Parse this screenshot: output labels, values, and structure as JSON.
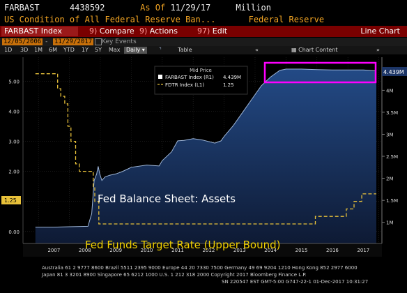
{
  "header": {
    "ticker": "FARBAST",
    "value": "4438592",
    "as_of_label": "As Of",
    "as_of_date": "11/29/17",
    "unit": "Million",
    "description": "US Condition of All Federal Reserve Ban...",
    "source": "Federal Reserve"
  },
  "menu": {
    "security": "FARBAST Index",
    "compare_num": "9)",
    "compare": "Compare",
    "actions_num": "9)",
    "actions": "Actions",
    "edit_num": "97)",
    "edit": "Edit",
    "chart_type": "Line Chart"
  },
  "toolbar": {
    "start_date": "12/05/2006",
    "end_date": "11/29/2017",
    "key_events": "Key Events",
    "periods": [
      "1D",
      "3D",
      "1M",
      "6M",
      "YTD",
      "1Y",
      "5Y",
      "Max"
    ],
    "frequency": "Daily",
    "table": "Table",
    "collapse": "«",
    "chart_content": "Chart Content",
    "expand": "»"
  },
  "chart_data": {
    "type": "line",
    "x_labels": [
      "2007",
      "2008",
      "2009",
      "2010",
      "2011",
      "2012",
      "2013",
      "2014",
      "2015",
      "2016",
      "2017"
    ],
    "left_axis": {
      "ticks": [
        "0.00",
        "1.00",
        "2.00",
        "3.00",
        "4.00",
        "5.00"
      ],
      "min": -0.4,
      "max": 5.8
    },
    "right_axis": {
      "ticks": [
        "1M",
        "1.5M",
        "2M",
        "2.5M",
        "3M",
        "3.5M",
        "4M"
      ],
      "min": 0.52,
      "max": 4.75
    },
    "legend_title": "Mid Price",
    "series": [
      {
        "name": "FARBAST Index",
        "axis": "R1",
        "last": "4.439M",
        "last_label": "4.439M",
        "points": [
          [
            2006.9,
            0.89
          ],
          [
            2007.5,
            0.89
          ],
          [
            2008.0,
            0.9
          ],
          [
            2008.6,
            0.91
          ],
          [
            2008.72,
            1.2
          ],
          [
            2008.8,
            1.95
          ],
          [
            2008.88,
            2.1
          ],
          [
            2008.93,
            2.27
          ],
          [
            2008.98,
            2.1
          ],
          [
            2009.05,
            1.95
          ],
          [
            2009.15,
            2.03
          ],
          [
            2009.3,
            2.07
          ],
          [
            2009.5,
            2.1
          ],
          [
            2009.7,
            2.15
          ],
          [
            2009.85,
            2.2
          ],
          [
            2010.0,
            2.25
          ],
          [
            2010.5,
            2.3
          ],
          [
            2010.9,
            2.28
          ],
          [
            2011.0,
            2.4
          ],
          [
            2011.3,
            2.6
          ],
          [
            2011.5,
            2.85
          ],
          [
            2011.7,
            2.86
          ],
          [
            2012.0,
            2.9
          ],
          [
            2012.3,
            2.87
          ],
          [
            2012.7,
            2.8
          ],
          [
            2012.9,
            2.85
          ],
          [
            2013.0,
            2.95
          ],
          [
            2013.3,
            3.2
          ],
          [
            2013.6,
            3.5
          ],
          [
            2013.9,
            3.8
          ],
          [
            2014.2,
            4.1
          ],
          [
            2014.5,
            4.3
          ],
          [
            2014.8,
            4.45
          ],
          [
            2015.0,
            4.48
          ],
          [
            2015.5,
            4.48
          ],
          [
            2016.0,
            4.47
          ],
          [
            2016.5,
            4.46
          ],
          [
            2017.0,
            4.46
          ],
          [
            2017.5,
            4.46
          ],
          [
            2017.92,
            4.44
          ]
        ]
      },
      {
        "name": "FDTR Index",
        "axis": "L1",
        "last": "1.25",
        "last_label": "1.25",
        "points": [
          [
            2006.9,
            5.25
          ],
          [
            2007.62,
            5.25
          ],
          [
            2007.62,
            4.75
          ],
          [
            2007.72,
            4.75
          ],
          [
            2007.72,
            4.5
          ],
          [
            2007.85,
            4.5
          ],
          [
            2007.85,
            4.25
          ],
          [
            2007.95,
            4.25
          ],
          [
            2007.95,
            3.5
          ],
          [
            2008.05,
            3.5
          ],
          [
            2008.05,
            3.0
          ],
          [
            2008.2,
            3.0
          ],
          [
            2008.2,
            2.25
          ],
          [
            2008.32,
            2.25
          ],
          [
            2008.32,
            2.0
          ],
          [
            2008.77,
            2.0
          ],
          [
            2008.77,
            1.5
          ],
          [
            2008.82,
            1.5
          ],
          [
            2008.82,
            1.0
          ],
          [
            2008.95,
            1.0
          ],
          [
            2008.95,
            0.25
          ],
          [
            2015.95,
            0.25
          ],
          [
            2015.95,
            0.5
          ],
          [
            2016.95,
            0.5
          ],
          [
            2016.95,
            0.75
          ],
          [
            2017.2,
            0.75
          ],
          [
            2017.2,
            1.0
          ],
          [
            2017.45,
            1.0
          ],
          [
            2017.45,
            1.25
          ],
          [
            2017.92,
            1.25
          ]
        ]
      }
    ],
    "annotations": [
      "Fed Balance Sheet: Assets",
      "Fed Funds Target Rate (Upper Bound)"
    ],
    "highlight_color": "#ff00ff",
    "area_color": "#1c3566",
    "rate_color": "#e8c13a"
  },
  "footer": {
    "line1": "Australia 61 2 9777 8600 Brazil 5511 2395 9000 Europe 44 20 7330 7500 Germany 49 69 9204 1210 Hong Kong 852 2977 6000",
    "line2": "Japan 81 3 3201 8900          Singapore 65 6212 1000          U.S. 1 212 318 2000          Copyright 2017 Bloomberg Finance L.P.",
    "line3": "SN 220547 EST  GMT-5:00 G747-22-1 01-Dec-2017 10:31:27"
  }
}
